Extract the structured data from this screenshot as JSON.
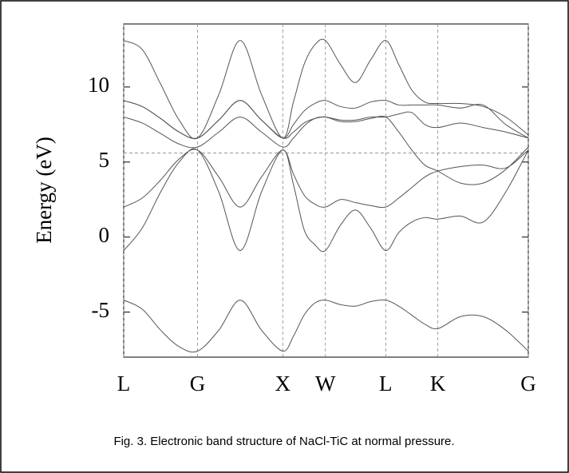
{
  "chart_data": {
    "type": "line",
    "ylabel": "Energy (eV)",
    "caption": "Fig. 3. Electronic band structure of NaCl-TiC at normal pressure.",
    "x": [
      0,
      0.217,
      0.433,
      0.65,
      0.866,
      1.116,
      1.366,
      1.616,
      1.866,
      1.991,
      2.116,
      2.241,
      2.366,
      2.543,
      2.72,
      2.896,
      3.073,
      3.226,
      3.379,
      3.532,
      3.685,
      3.95,
      4.216,
      4.481,
      4.746
    ],
    "xlim": [
      0,
      4.746
    ],
    "xticks": [
      {
        "value": 0,
        "label": "L"
      },
      {
        "value": 0.866,
        "label": "G"
      },
      {
        "value": 1.866,
        "label": "X"
      },
      {
        "value": 2.366,
        "label": "W"
      },
      {
        "value": 3.073,
        "label": "L"
      },
      {
        "value": 3.685,
        "label": "K"
      },
      {
        "value": 4.746,
        "label": "G"
      }
    ],
    "ylim": [
      -8,
      14.2
    ],
    "yticks": [
      -5,
      0,
      5,
      10
    ],
    "grid": true,
    "hline": 5.6,
    "series": [
      {
        "color": "#555555",
        "values": [
          -4.2,
          -4.8,
          -6.2,
          -7.3,
          -7.6,
          -6.2,
          -4.2,
          -6.2,
          -7.6,
          -6.6,
          -5.2,
          -4.4,
          -4.2,
          -4.5,
          -4.6,
          -4.3,
          -4.2,
          -4.6,
          -5.2,
          -5.8,
          -6.1,
          -5.3,
          -5.3,
          -6.2,
          -7.6
        ]
      },
      {
        "color": "#555555",
        "values": [
          -0.9,
          0.6,
          3.0,
          5.0,
          5.8,
          3.0,
          -0.9,
          3.0,
          5.8,
          3.5,
          0.5,
          -0.5,
          -0.9,
          0.8,
          1.8,
          0.6,
          -0.9,
          0.3,
          1.0,
          1.3,
          1.2,
          1.4,
          1.0,
          3.0,
          5.8
        ]
      },
      {
        "color": "#555555",
        "values": [
          2.0,
          2.6,
          3.8,
          5.2,
          5.8,
          4.0,
          2.0,
          4.0,
          5.8,
          4.2,
          2.8,
          2.2,
          2.0,
          2.5,
          2.3,
          2.1,
          2.0,
          2.6,
          3.3,
          4.0,
          4.4,
          4.7,
          4.8,
          4.6,
          5.8
        ]
      },
      {
        "color": "#555555",
        "values": [
          8.0,
          7.6,
          6.9,
          6.2,
          6.0,
          7.0,
          8.0,
          7.0,
          6.0,
          6.6,
          7.4,
          7.9,
          8.0,
          7.7,
          7.7,
          7.9,
          8.0,
          7.0,
          5.8,
          4.8,
          4.4,
          3.6,
          3.6,
          4.5,
          6.0
        ]
      },
      {
        "color": "#555555",
        "values": [
          9.1,
          8.7,
          7.9,
          7.0,
          6.6,
          7.8,
          9.1,
          7.8,
          6.6,
          7.0,
          7.6,
          7.9,
          8.0,
          7.8,
          7.8,
          8.0,
          8.0,
          8.2,
          8.3,
          7.5,
          7.3,
          7.6,
          7.3,
          7.0,
          6.6
        ]
      },
      {
        "color": "#555555",
        "values": [
          9.1,
          8.7,
          7.9,
          7.0,
          6.6,
          7.8,
          9.1,
          7.8,
          6.6,
          7.5,
          8.4,
          8.9,
          9.1,
          8.7,
          8.6,
          9.0,
          9.1,
          8.8,
          8.8,
          8.8,
          8.8,
          8.6,
          8.8,
          7.5,
          6.6
        ]
      },
      {
        "color": "#555555",
        "values": [
          13.1,
          12.5,
          10.2,
          7.8,
          6.6,
          9.5,
          13.1,
          9.5,
          6.6,
          9.0,
          11.5,
          12.8,
          13.1,
          11.5,
          10.3,
          11.8,
          13.1,
          11.5,
          9.8,
          9.0,
          8.9,
          8.9,
          8.7,
          8.0,
          6.8
        ]
      }
    ]
  }
}
